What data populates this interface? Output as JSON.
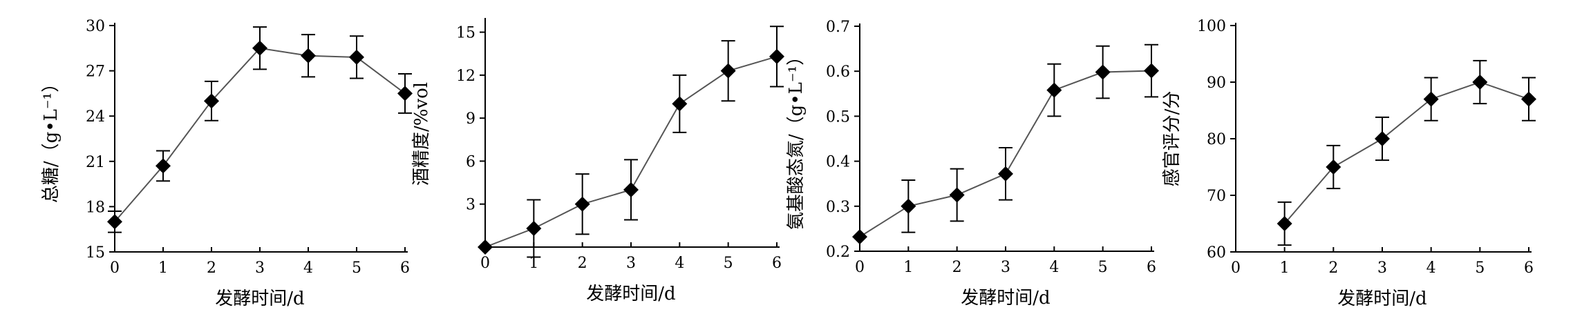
{
  "chart_data": [
    {
      "type": "line",
      "xlabel": "发酵时间/d",
      "ylabel": "总糖/（g•L⁻¹）",
      "x": [
        0,
        1,
        2,
        3,
        4,
        5,
        6
      ],
      "xticks": [
        "0",
        "1",
        "2",
        "3",
        "4",
        "5",
        "6"
      ],
      "xlim": [
        0,
        6
      ],
      "ylim": [
        15,
        30
      ],
      "yticks": [
        "15",
        "18",
        "21",
        "24",
        "27",
        "30"
      ],
      "ytick_values": [
        15,
        18,
        21,
        24,
        27,
        30
      ],
      "series": [
        {
          "values": [
            17.0,
            20.7,
            25.0,
            28.5,
            28.0,
            27.9,
            25.5
          ],
          "errors": [
            0.7,
            1.0,
            1.3,
            1.4,
            1.4,
            1.4,
            1.3
          ]
        }
      ]
    },
    {
      "type": "line",
      "xlabel": "发酵时间/d",
      "ylabel": "酒精度/%vol",
      "x": [
        0,
        1,
        2,
        3,
        4,
        5,
        6
      ],
      "xticks": [
        "0",
        "1",
        "2",
        "3",
        "4",
        "5",
        "6"
      ],
      "xlim": [
        0,
        6
      ],
      "ylim": [
        0,
        15.8
      ],
      "yticks": [
        "3",
        "6",
        "9",
        "12",
        "15"
      ],
      "ytick_values": [
        3,
        6,
        9,
        12,
        15
      ],
      "series": [
        {
          "values": [
            0.0,
            1.3,
            3.0,
            4.0,
            10.0,
            12.3,
            13.3
          ],
          "errors": [
            0,
            2.0,
            2.1,
            2.1,
            2.0,
            2.1,
            2.1
          ]
        }
      ]
    },
    {
      "type": "line",
      "xlabel": "发酵时间/d",
      "ylabel": "氨基酸态氮/（g•L⁻¹）",
      "x": [
        0,
        1,
        2,
        3,
        4,
        5,
        6
      ],
      "xticks": [
        "0",
        "1",
        "2",
        "3",
        "4",
        "5",
        "6"
      ],
      "xlim": [
        0,
        6
      ],
      "ylim": [
        0.2,
        0.7
      ],
      "yticks": [
        "0.2",
        "0.3",
        "0.4",
        "0.5",
        "0.6",
        "0.7"
      ],
      "ytick_values": [
        0.2,
        0.3,
        0.4,
        0.5,
        0.6,
        0.7
      ],
      "series": [
        {
          "values": [
            0.232,
            0.3,
            0.325,
            0.372,
            0.558,
            0.598,
            0.601
          ],
          "errors": [
            0,
            0.058,
            0.058,
            0.058,
            0.058,
            0.058,
            0.058
          ]
        }
      ]
    },
    {
      "type": "line",
      "xlabel": "发酵时间/d",
      "ylabel": "感官评分/分",
      "x": [
        1,
        2,
        3,
        4,
        5,
        6
      ],
      "xticks": [
        "0",
        "1",
        "2",
        "3",
        "4",
        "5",
        "6"
      ],
      "xlim": [
        0,
        6
      ],
      "ylim": [
        60,
        100
      ],
      "yticks": [
        "60",
        "70",
        "80",
        "90",
        "100"
      ],
      "ytick_values": [
        60,
        70,
        80,
        90,
        100
      ],
      "series": [
        {
          "values": [
            65,
            75,
            80,
            87,
            90,
            87
          ],
          "errors": [
            3.8,
            3.8,
            3.8,
            3.8,
            3.8,
            3.8
          ]
        }
      ]
    }
  ]
}
